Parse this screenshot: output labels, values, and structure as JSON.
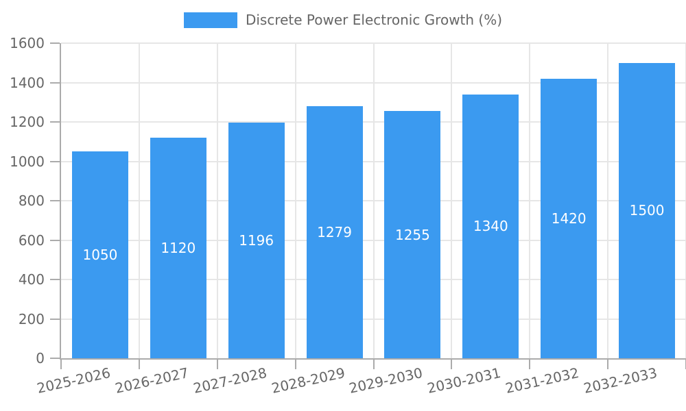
{
  "chart_data": {
    "type": "bar",
    "title": "Discrete Power Electronic Growth (%)",
    "xlabel": "",
    "ylabel": "",
    "categories": [
      "2025-2026",
      "2026-2027",
      "2027-2028",
      "2028-2029",
      "2029-2030",
      "2030-2031",
      "2031-2032",
      "2032-2033"
    ],
    "values": [
      1050,
      1120,
      1196,
      1279,
      1255,
      1340,
      1420,
      1500
    ],
    "ylim": [
      0,
      1600
    ],
    "y_ticks": [
      0,
      200,
      400,
      600,
      800,
      1000,
      1200,
      1400,
      1600
    ],
    "grid": true,
    "legend_position": "top",
    "bar_color": "#3b9af0",
    "value_label_color": "#ffffff",
    "tick_label_color": "#666666",
    "grid_color": "#e6e6e6",
    "axis_line_color": "#ababab",
    "x_tick_rotation_deg": -12.5
  }
}
